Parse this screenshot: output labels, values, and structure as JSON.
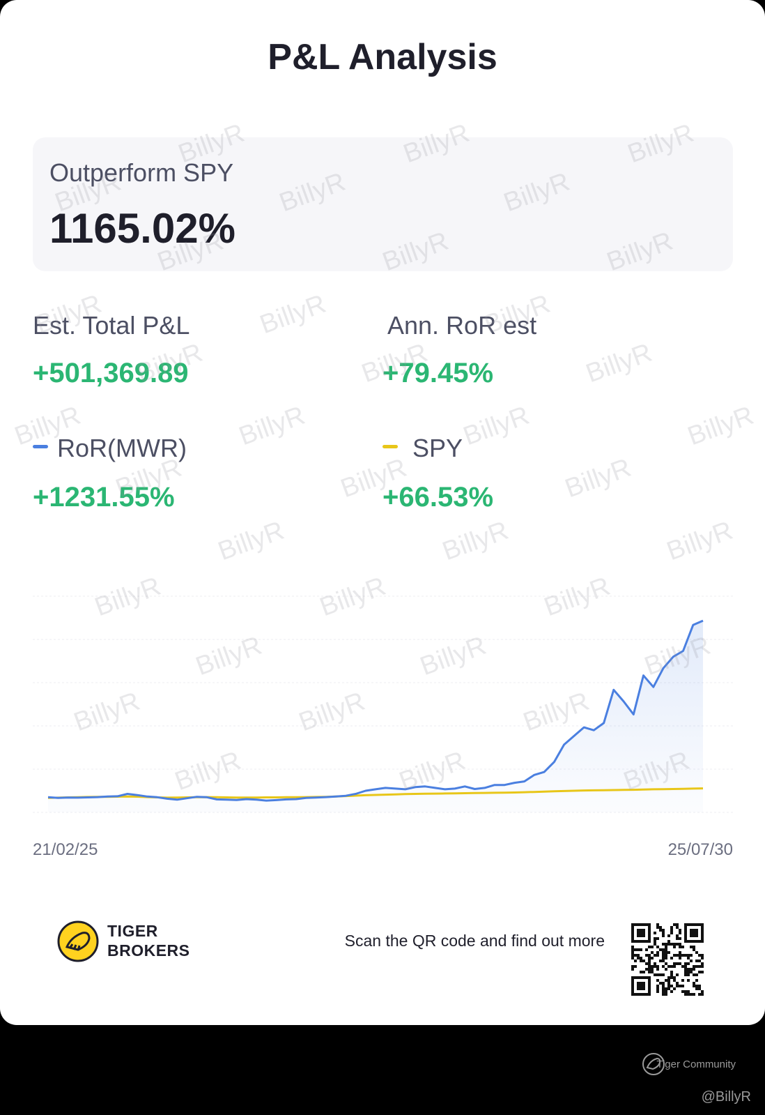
{
  "title": "P&L Analysis",
  "outperform": {
    "label": "Outperform SPY",
    "value": "1165.02%"
  },
  "stats": {
    "total_pnl": {
      "label": "Est. Total P&L",
      "value": "+501,369.89"
    },
    "ann_ror": {
      "label": "Ann. RoR est",
      "value": "+79.45%"
    },
    "ror_mwr": {
      "label": "RoR(MWR)",
      "value": "+1231.55%"
    },
    "spy": {
      "label": "SPY",
      "value": "+66.53%"
    }
  },
  "colors": {
    "ror_line": "#4a7fe0",
    "spy_line": "#e8c619",
    "positive": "#2bb673"
  },
  "chart_data": {
    "type": "line",
    "x_start_label": "21/02/25",
    "x_end_label": "25/07/30",
    "grid": true,
    "legend": "top",
    "ylim": [
      -100,
      1400
    ],
    "series": [
      {
        "name": "RoR(MWR)",
        "color": "#4a7fe0",
        "values": [
          5,
          0,
          3,
          2,
          4,
          6,
          10,
          12,
          28,
          20,
          10,
          5,
          -5,
          -12,
          -2,
          8,
          5,
          -10,
          -12,
          -14,
          -8,
          -12,
          -18,
          -15,
          -10,
          -8,
          0,
          3,
          6,
          10,
          15,
          28,
          50,
          60,
          70,
          65,
          60,
          75,
          80,
          70,
          60,
          65,
          80,
          62,
          70,
          90,
          90,
          105,
          115,
          160,
          180,
          250,
          370,
          430,
          490,
          470,
          520,
          750,
          670,
          580,
          850,
          770,
          900,
          980,
          1020,
          1200,
          1230
        ]
      },
      {
        "name": "SPY",
        "color": "#e8c619",
        "values": [
          0,
          2,
          4,
          5,
          7,
          8,
          8,
          9,
          10,
          9,
          6,
          4,
          2,
          3,
          4,
          5,
          6,
          5,
          4,
          3,
          3,
          3,
          4,
          4,
          5,
          5,
          6,
          7,
          8,
          10,
          13,
          16,
          19,
          21,
          23,
          25,
          27,
          28,
          29,
          30,
          31,
          32,
          33,
          34,
          35,
          36,
          37,
          38,
          40,
          42,
          44,
          46,
          48,
          50,
          52,
          53,
          54,
          55,
          56,
          57,
          58,
          60,
          61,
          62,
          63,
          65,
          66.53
        ]
      }
    ]
  },
  "watermark": "BillyR",
  "footer": {
    "brand_line1": "TIGER",
    "brand_line2": "BROKERS",
    "scan_text": "Scan the QR code and find out more"
  },
  "community": "Tiger Community",
  "handle": "@BillyR"
}
